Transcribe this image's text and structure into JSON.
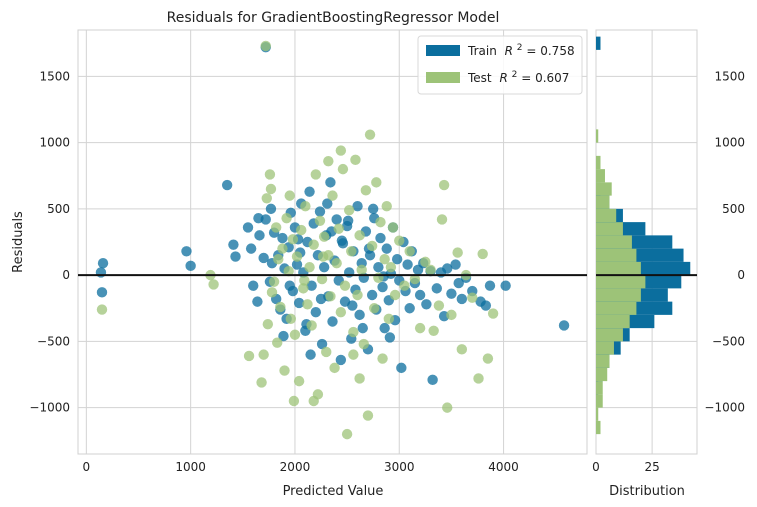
{
  "chart_data": {
    "type": "scatter",
    "title": "Residuals for GradientBoostingRegressor Model",
    "xlabel": "Predicted Value",
    "ylabel": "Residuals",
    "xlim": [
      -80,
      4800
    ],
    "ylim": [
      -1350,
      1850
    ],
    "xticks": [
      0,
      1000,
      2000,
      3000,
      4000
    ],
    "yticks": [
      -1000,
      -500,
      0,
      500,
      1000,
      1500
    ],
    "ytick_labels": [
      "−1000",
      "−500",
      "0",
      "500",
      "1000",
      "1500"
    ],
    "hline_y": 0,
    "grid": true,
    "legend_position": "top-right",
    "colors": {
      "train": "#0b6e9e",
      "test": "#9dc378",
      "zero_line": "#111111",
      "grid": "#d3d3d3"
    },
    "legend": [
      {
        "label": "Train",
        "r2_text": "R",
        "r2_sup": "2",
        "value_text": " = 0.758",
        "color": "#0b6e9e"
      },
      {
        "label": "Test",
        "r2_text": "R",
        "r2_sup": "2",
        "value_text": " = 0.607",
        "color": "#9dc378"
      }
    ],
    "series": [
      {
        "name": "Train",
        "r2": 0.758,
        "color": "#0b6e9e",
        "points": [
          [
            140,
            20
          ],
          [
            150,
            -130
          ],
          [
            160,
            90
          ],
          [
            960,
            180
          ],
          [
            1000,
            70
          ],
          [
            1350,
            680
          ],
          [
            1720,
            1720
          ],
          [
            1410,
            230
          ],
          [
            1430,
            140
          ],
          [
            1580,
            200
          ],
          [
            1600,
            -80
          ],
          [
            1640,
            -200
          ],
          [
            1650,
            430
          ],
          [
            1660,
            300
          ],
          [
            1700,
            130
          ],
          [
            1720,
            420
          ],
          [
            1760,
            -50
          ],
          [
            1780,
            90
          ],
          [
            1800,
            320
          ],
          [
            1820,
            -180
          ],
          [
            1840,
            150
          ],
          [
            1860,
            -260
          ],
          [
            1880,
            280
          ],
          [
            1900,
            50
          ],
          [
            1920,
            -330
          ],
          [
            1940,
            210
          ],
          [
            1960,
            470
          ],
          [
            1980,
            -120
          ],
          [
            2000,
            360
          ],
          [
            2020,
            80
          ],
          [
            2040,
            -210
          ],
          [
            2060,
            540
          ],
          [
            2080,
            20
          ],
          [
            2100,
            -420
          ],
          [
            2120,
            250
          ],
          [
            2140,
            630
          ],
          [
            2160,
            -80
          ],
          [
            2180,
            390
          ],
          [
            2200,
            -280
          ],
          [
            2220,
            150
          ],
          [
            2240,
            480
          ],
          [
            2260,
            -520
          ],
          [
            2280,
            60
          ],
          [
            2300,
            300
          ],
          [
            2320,
            -160
          ],
          [
            2340,
            700
          ],
          [
            2360,
            -350
          ],
          [
            2380,
            110
          ],
          [
            2400,
            420
          ],
          [
            2420,
            -40
          ],
          [
            2440,
            -640
          ],
          [
            2460,
            240
          ],
          [
            2480,
            -200
          ],
          [
            2500,
            370
          ],
          [
            2520,
            20
          ],
          [
            2540,
            -480
          ],
          [
            2560,
            180
          ],
          [
            2580,
            -110
          ],
          [
            2600,
            520
          ],
          [
            2620,
            -300
          ],
          [
            2640,
            90
          ],
          [
            2660,
            -20
          ],
          [
            2680,
            330
          ],
          [
            2700,
            -560
          ],
          [
            2720,
            150
          ],
          [
            2740,
            -150
          ],
          [
            2760,
            430
          ],
          [
            2780,
            -260
          ],
          [
            2800,
            60
          ],
          [
            2820,
            280
          ],
          [
            2840,
            -90
          ],
          [
            2860,
            -400
          ],
          [
            2880,
            200
          ],
          [
            2900,
            -190
          ],
          [
            2920,
            10
          ],
          [
            2940,
            360
          ],
          [
            2960,
            -340
          ],
          [
            2980,
            120
          ],
          [
            3000,
            -40
          ],
          [
            3020,
            -700
          ],
          [
            3040,
            250
          ],
          [
            3060,
            -120
          ],
          [
            3080,
            80
          ],
          [
            3100,
            -250
          ],
          [
            3120,
            180
          ],
          [
            3150,
            -60
          ],
          [
            3180,
            40
          ],
          [
            3200,
            -150
          ],
          [
            3230,
            90
          ],
          [
            3260,
            -220
          ],
          [
            3300,
            30
          ],
          [
            3320,
            -790
          ],
          [
            3360,
            -100
          ],
          [
            3400,
            20
          ],
          [
            3430,
            -310
          ],
          [
            3460,
            50
          ],
          [
            3500,
            -140
          ],
          [
            3540,
            80
          ],
          [
            3570,
            -60
          ],
          [
            3600,
            -180
          ],
          [
            3640,
            -20
          ],
          [
            3700,
            -120
          ],
          [
            3780,
            -200
          ],
          [
            3830,
            -230
          ],
          [
            3870,
            -80
          ],
          [
            4020,
            -80
          ],
          [
            4580,
            -380
          ],
          [
            1550,
            360
          ],
          [
            1950,
            -80
          ],
          [
            2150,
            -600
          ],
          [
            2350,
            330
          ],
          [
            2550,
            -230
          ],
          [
            2750,
            500
          ],
          [
            2250,
            -180
          ],
          [
            2050,
            170
          ],
          [
            2450,
            260
          ],
          [
            2650,
            -400
          ],
          [
            2850,
            -10
          ],
          [
            1890,
            -460
          ],
          [
            2110,
            -370
          ],
          [
            2310,
            540
          ],
          [
            2510,
            410
          ],
          [
            2710,
            200
          ],
          [
            2910,
            -470
          ],
          [
            1770,
            500
          ],
          [
            2030,
            270
          ]
        ]
      },
      {
        "name": "Test",
        "r2": 0.607,
        "color": "#9dc378",
        "points": [
          [
            150,
            -260
          ],
          [
            1190,
            0
          ],
          [
            1220,
            -70
          ],
          [
            1560,
            -610
          ],
          [
            1680,
            -810
          ],
          [
            1700,
            -600
          ],
          [
            1720,
            1730
          ],
          [
            1730,
            580
          ],
          [
            1740,
            -370
          ],
          [
            1760,
            760
          ],
          [
            1770,
            650
          ],
          [
            1780,
            -130
          ],
          [
            1800,
            -50
          ],
          [
            1820,
            360
          ],
          [
            1840,
            120
          ],
          [
            1860,
            -240
          ],
          [
            1880,
            200
          ],
          [
            1900,
            -720
          ],
          [
            1920,
            430
          ],
          [
            1940,
            30
          ],
          [
            1960,
            -330
          ],
          [
            1980,
            270
          ],
          [
            2000,
            -450
          ],
          [
            2020,
            140
          ],
          [
            2040,
            -800
          ],
          [
            2060,
            340
          ],
          [
            2080,
            -100
          ],
          [
            2100,
            520
          ],
          [
            2120,
            -220
          ],
          [
            2140,
            60
          ],
          [
            2160,
            -380
          ],
          [
            2180,
            230
          ],
          [
            2200,
            760
          ],
          [
            2220,
            -900
          ],
          [
            2240,
            410
          ],
          [
            2260,
            -30
          ],
          [
            2280,
            290
          ],
          [
            2300,
            -580
          ],
          [
            2320,
            150
          ],
          [
            2340,
            -160
          ],
          [
            2360,
            600
          ],
          [
            2380,
            -700
          ],
          [
            2400,
            90
          ],
          [
            2420,
            350
          ],
          [
            2440,
            -280
          ],
          [
            2460,
            800
          ],
          [
            2480,
            -80
          ],
          [
            2500,
            -1200
          ],
          [
            2520,
            490
          ],
          [
            2540,
            180
          ],
          [
            2560,
            -430
          ],
          [
            2580,
            870
          ],
          [
            2600,
            -150
          ],
          [
            2620,
            300
          ],
          [
            2640,
            40
          ],
          [
            2660,
            -520
          ],
          [
            2680,
            640
          ],
          [
            2700,
            -1060
          ],
          [
            2720,
            1060
          ],
          [
            2740,
            220
          ],
          [
            2760,
            -250
          ],
          [
            2780,
            700
          ],
          [
            2800,
            -20
          ],
          [
            2820,
            400
          ],
          [
            2840,
            -630
          ],
          [
            2860,
            120
          ],
          [
            2880,
            520
          ],
          [
            2900,
            -330
          ],
          [
            2920,
            60
          ],
          [
            2940,
            360
          ],
          [
            2960,
            -150
          ],
          [
            3000,
            260
          ],
          [
            3050,
            -80
          ],
          [
            3100,
            180
          ],
          [
            3150,
            -30
          ],
          [
            3200,
            -400
          ],
          [
            3250,
            100
          ],
          [
            3300,
            40
          ],
          [
            3330,
            -420
          ],
          [
            3380,
            -230
          ],
          [
            3410,
            420
          ],
          [
            3430,
            680
          ],
          [
            3460,
            -1000
          ],
          [
            3500,
            -300
          ],
          [
            3560,
            170
          ],
          [
            3600,
            -560
          ],
          [
            3640,
            0
          ],
          [
            3700,
            -170
          ],
          [
            3760,
            -780
          ],
          [
            3800,
            160
          ],
          [
            3850,
            -630
          ],
          [
            3900,
            -290
          ],
          [
            1990,
            -950
          ],
          [
            2180,
            -950
          ],
          [
            2320,
            860
          ],
          [
            2440,
            940
          ],
          [
            1830,
            -510
          ],
          [
            2560,
            -600
          ],
          [
            2090,
            -40
          ],
          [
            2270,
            140
          ],
          [
            2620,
            -780
          ],
          [
            1950,
            600
          ]
        ]
      }
    ],
    "distribution": {
      "xlabel": "Distribution",
      "xticks": [
        0,
        25
      ],
      "xlim": [
        0,
        45
      ],
      "bins": [
        {
          "y": -1150,
          "train": 0,
          "test": 2
        },
        {
          "y": -1050,
          "train": 0,
          "test": 1
        },
        {
          "y": -950,
          "train": 0,
          "test": 3
        },
        {
          "y": -850,
          "train": 1,
          "test": 3
        },
        {
          "y": -750,
          "train": 3,
          "test": 5
        },
        {
          "y": -650,
          "train": 6,
          "test": 6
        },
        {
          "y": -550,
          "train": 11,
          "test": 8
        },
        {
          "y": -450,
          "train": 15,
          "test": 12
        },
        {
          "y": -350,
          "train": 26,
          "test": 15
        },
        {
          "y": -250,
          "train": 34,
          "test": 18
        },
        {
          "y": -150,
          "train": 32,
          "test": 20
        },
        {
          "y": -50,
          "train": 38,
          "test": 22
        },
        {
          "y": 50,
          "train": 42,
          "test": 20
        },
        {
          "y": 150,
          "train": 39,
          "test": 18
        },
        {
          "y": 250,
          "train": 34,
          "test": 16
        },
        {
          "y": 350,
          "train": 22,
          "test": 12
        },
        {
          "y": 450,
          "train": 12,
          "test": 9
        },
        {
          "y": 550,
          "train": 6,
          "test": 6
        },
        {
          "y": 650,
          "train": 2,
          "test": 7
        },
        {
          "y": 750,
          "train": 0,
          "test": 4
        },
        {
          "y": 850,
          "train": 0,
          "test": 2
        },
        {
          "y": 1050,
          "train": 0,
          "test": 1
        },
        {
          "y": 1750,
          "train": 2,
          "test": 0
        }
      ]
    }
  }
}
